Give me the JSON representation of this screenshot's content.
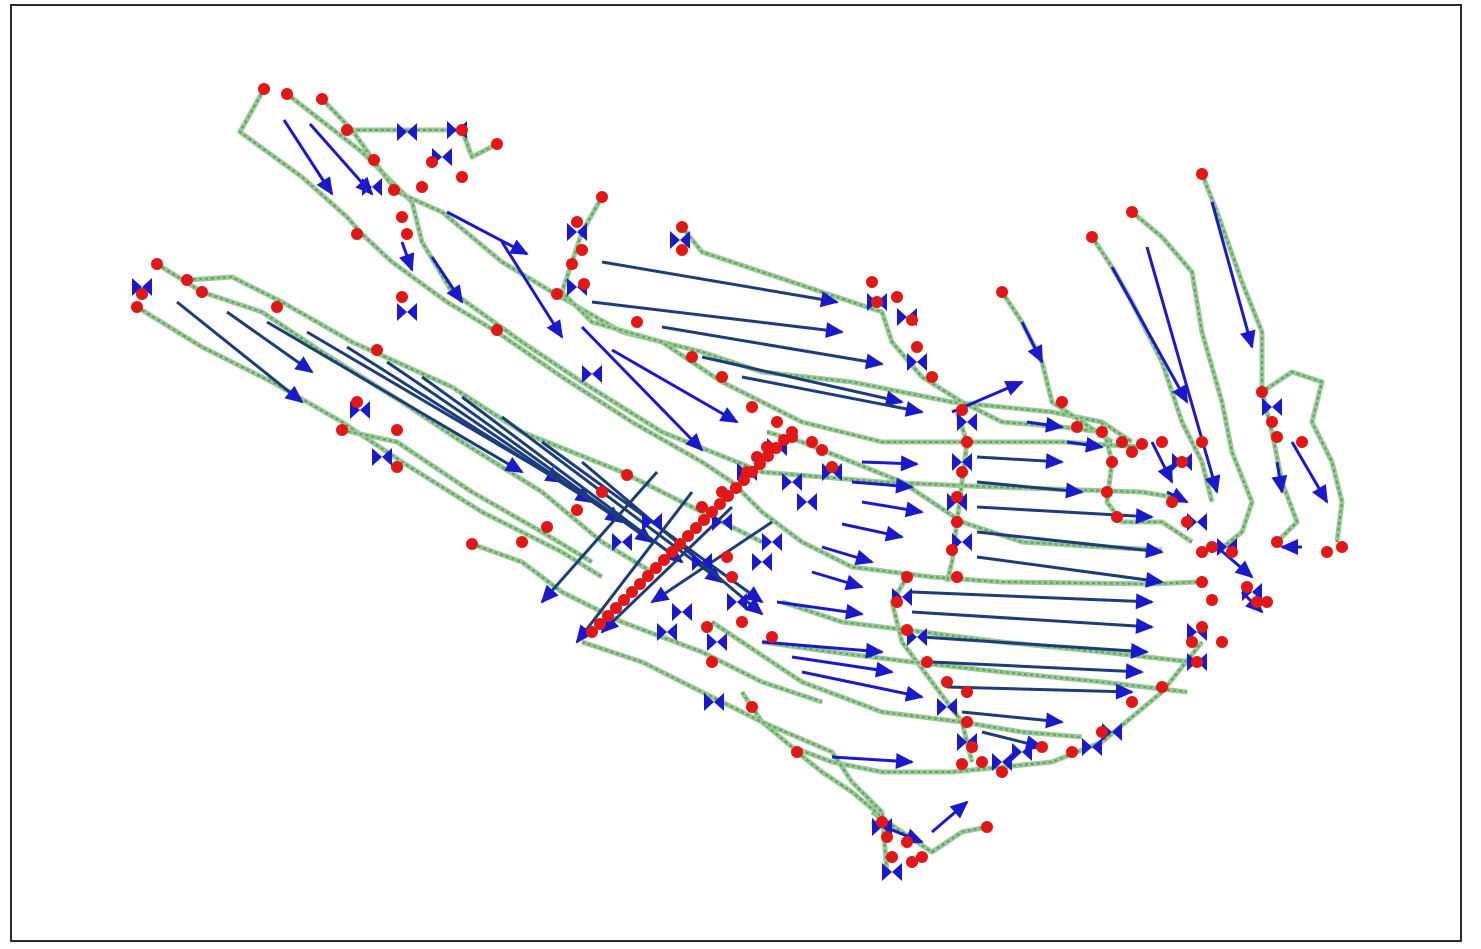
{
  "diagram": {
    "type": "network-flow-graph",
    "colors": {
      "edge_path": "#5aa55a",
      "edge_path_light": "#9cc89a",
      "flow_arrow": "#1a1ac8",
      "flow_arrow_dark": "#1c3c7a",
      "node": "#e01818",
      "frame": "#2b2b2b"
    },
    "node_count_estimate": 230,
    "arrow_count_estimate": 200
  }
}
